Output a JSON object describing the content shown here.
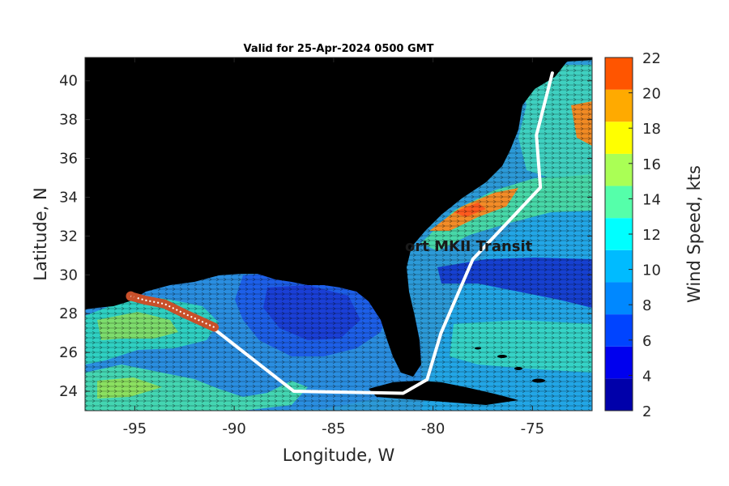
{
  "title": "Valid for 25-Apr-2024 0500 GMT",
  "xlabel": "Longitude, W",
  "ylabel": "Latitude, N",
  "x_ticks": [
    "-95",
    "-90",
    "-85",
    "-80",
    "-75"
  ],
  "y_ticks": [
    "24",
    "26",
    "28",
    "30",
    "32",
    "34",
    "36",
    "38",
    "40"
  ],
  "colorbar": {
    "label": "Wind Speed, kts",
    "ticks": [
      "2",
      "4",
      "6",
      "8",
      "10",
      "12",
      "14",
      "16",
      "18",
      "20",
      "22"
    ],
    "colors": [
      "#0000aa",
      "#0000ee",
      "#0044ff",
      "#0088ff",
      "#00bbff",
      "#00ffff",
      "#55ffaa",
      "#aaff55",
      "#ffff00",
      "#ffaa00",
      "#ff5500"
    ]
  },
  "route_label": "ort MKII Transit",
  "route_color": "#ffffff",
  "highlight_color": "#c8502a",
  "land_color": "#000000",
  "chart_data": {
    "type": "map",
    "xlim": [
      -97.5,
      -72
    ],
    "ylim": [
      23,
      41.2
    ],
    "route": [
      {
        "lon": -74.0,
        "lat": 40.4
      },
      {
        "lon": -74.8,
        "lat": 37.2
      },
      {
        "lon": -74.6,
        "lat": 34.5
      },
      {
        "lon": -78.0,
        "lat": 30.8
      },
      {
        "lon": -79.6,
        "lat": 27.0
      },
      {
        "lon": -80.3,
        "lat": 24.6
      },
      {
        "lon": -81.5,
        "lat": 23.9
      },
      {
        "lon": -87.0,
        "lat": 24.0
      },
      {
        "lon": -91.0,
        "lat": 27.2
      }
    ],
    "highlight_segment": [
      {
        "lon": -91.0,
        "lat": 27.3
      },
      {
        "lon": -92.5,
        "lat": 28.0
      },
      {
        "lon": -93.5,
        "lat": 28.5
      },
      {
        "lon": -94.5,
        "lat": 28.7
      },
      {
        "lon": -95.2,
        "lat": 28.9
      }
    ]
  }
}
